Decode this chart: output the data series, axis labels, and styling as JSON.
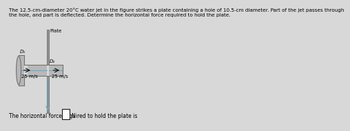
{
  "title_text": "The 12.5-cm-diameter 20°C water jet in the figure strikes a plate containing a hole of 10.5-cm diameter. Part of the jet passes through\nthe hole, and part is deflected. Determine the horizontal force required to hold the plate.",
  "bg_color": "#d8d8d8",
  "plate_color": "#909090",
  "pipe_fill_color": "#b8b8b8",
  "pipe_edge_color": "#707070",
  "jet_color": "#6aabcc",
  "text_color": "#000000",
  "label_D1": "D₁",
  "label_D2": "D₂",
  "label_Plate": "Plate",
  "label_v1": "25 m/s",
  "label_v2": "25 m/s",
  "footer_text": "The horizontal force required to hold the plate is",
  "footer_unit": "N",
  "title_fontsize": 5.2,
  "label_fontsize": 5.0,
  "footer_fontsize": 5.5
}
